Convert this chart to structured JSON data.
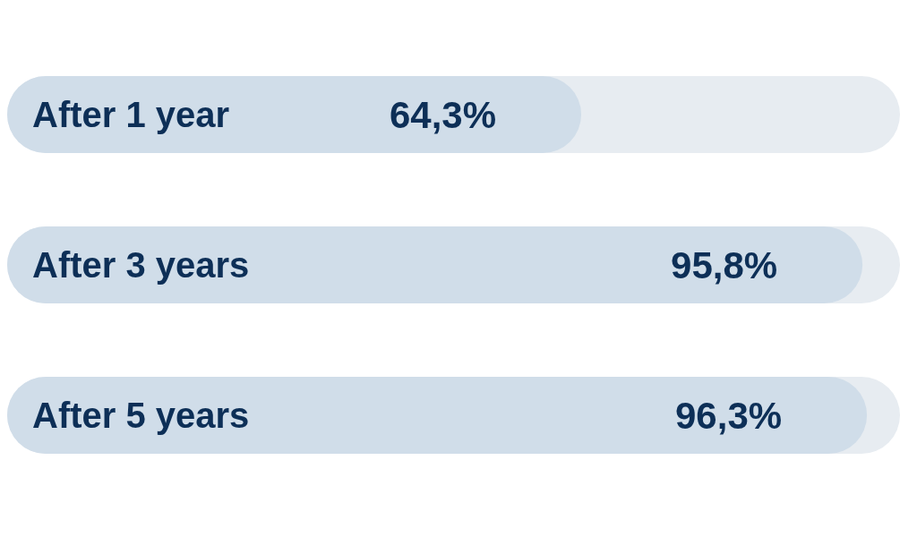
{
  "chart_data": {
    "type": "bar",
    "orientation": "horizontal",
    "categories": [
      "After 1 year",
      "After 3 years",
      "After 5 years"
    ],
    "values": [
      64.3,
      95.8,
      96.3
    ],
    "value_labels": [
      "64,3%",
      "95,8%",
      "96,3%"
    ],
    "color": "#d0dde9",
    "xlim": [
      0,
      100
    ],
    "tick_labels": "y",
    "grid": false,
    "legend": false
  }
}
